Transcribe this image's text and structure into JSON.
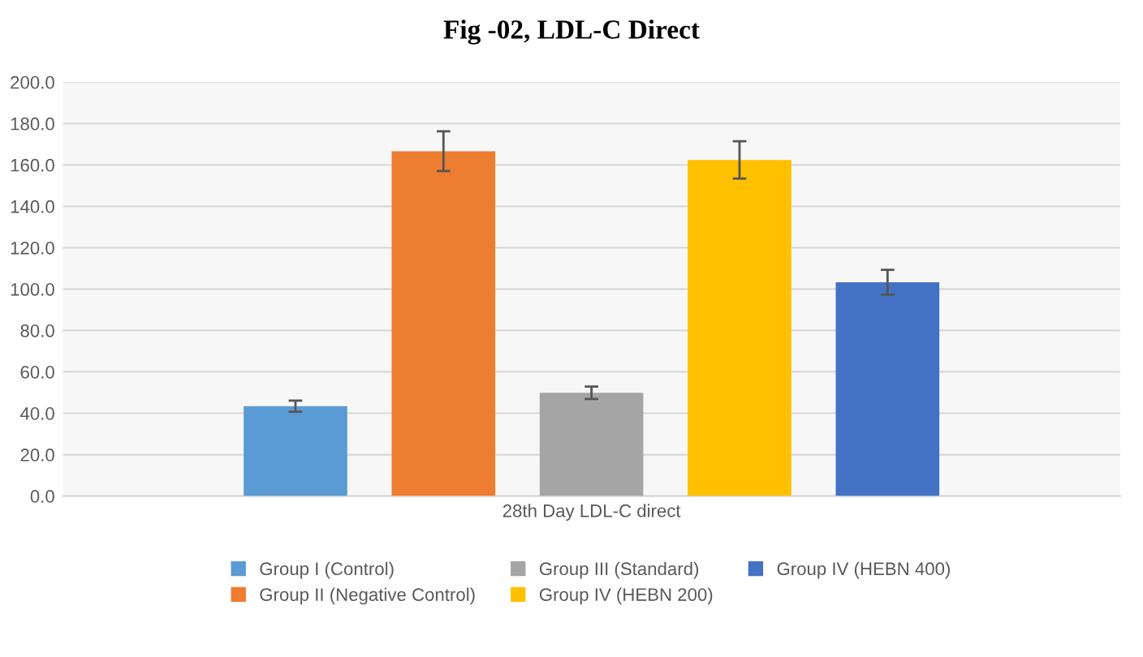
{
  "chart_data": {
    "type": "bar",
    "title": "Fig -02, LDL-C Direct",
    "categories": [
      "28th Day LDL-C direct"
    ],
    "series": [
      {
        "name": "Group I (Control)",
        "color": "#5b9bd5",
        "values": [
          43.4
        ],
        "errors": [
          2.7
        ]
      },
      {
        "name": "Group II (Negative Control)",
        "color": "#ed7d31",
        "values": [
          166.6
        ],
        "errors": [
          9.6
        ]
      },
      {
        "name": "Group III (Standard)",
        "color": "#a5a5a5",
        "values": [
          49.9
        ],
        "errors": [
          3.0
        ]
      },
      {
        "name": "Group IV (HEBN 200)",
        "color": "#ffc000",
        "values": [
          162.4
        ],
        "errors": [
          9.0
        ]
      },
      {
        "name": "Group IV (HEBN 400)",
        "color": "#4472c4",
        "values": [
          103.3
        ],
        "errors": [
          6.0
        ]
      }
    ],
    "ylim": [
      0,
      200
    ],
    "yticks": [
      {
        "value": 0,
        "label": "0.0"
      },
      {
        "value": 20,
        "label": "20.0"
      },
      {
        "value": 40,
        "label": "40.0"
      },
      {
        "value": 60,
        "label": "60.0"
      },
      {
        "value": 80,
        "label": "80.0"
      },
      {
        "value": 100,
        "label": "100.0"
      },
      {
        "value": 120,
        "label": "120.0"
      },
      {
        "value": 140,
        "label": "140.0"
      },
      {
        "value": 160,
        "label": "160.0"
      },
      {
        "value": 180,
        "label": "180.0"
      },
      {
        "value": 200,
        "label": "200.0"
      }
    ],
    "grid": "y",
    "legend": "bottom"
  }
}
